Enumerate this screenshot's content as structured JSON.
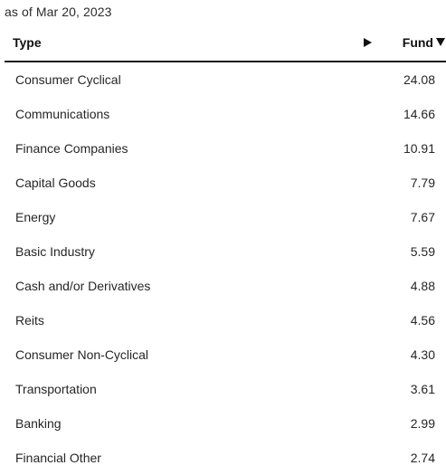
{
  "as_of": "as of Mar 20, 2023",
  "table": {
    "headers": {
      "type": "Type",
      "fund": "Fund"
    },
    "rows": [
      {
        "type": "Consumer Cyclical",
        "fund": "24.08"
      },
      {
        "type": "Communications",
        "fund": "14.66"
      },
      {
        "type": "Finance Companies",
        "fund": "10.91"
      },
      {
        "type": "Capital Goods",
        "fund": "7.79"
      },
      {
        "type": "Energy",
        "fund": "7.67"
      },
      {
        "type": "Basic Industry",
        "fund": "5.59"
      },
      {
        "type": "Cash and/or Derivatives",
        "fund": "4.88"
      },
      {
        "type": "Reits",
        "fund": "4.56"
      },
      {
        "type": "Consumer Non-Cyclical",
        "fund": "4.30"
      },
      {
        "type": "Transportation",
        "fund": "3.61"
      },
      {
        "type": "Banking",
        "fund": "2.99"
      },
      {
        "type": "Financial Other",
        "fund": "2.74"
      }
    ]
  },
  "icons": {
    "expand_column": "play-arrow-icon",
    "sort": "sort-descending-icon"
  }
}
